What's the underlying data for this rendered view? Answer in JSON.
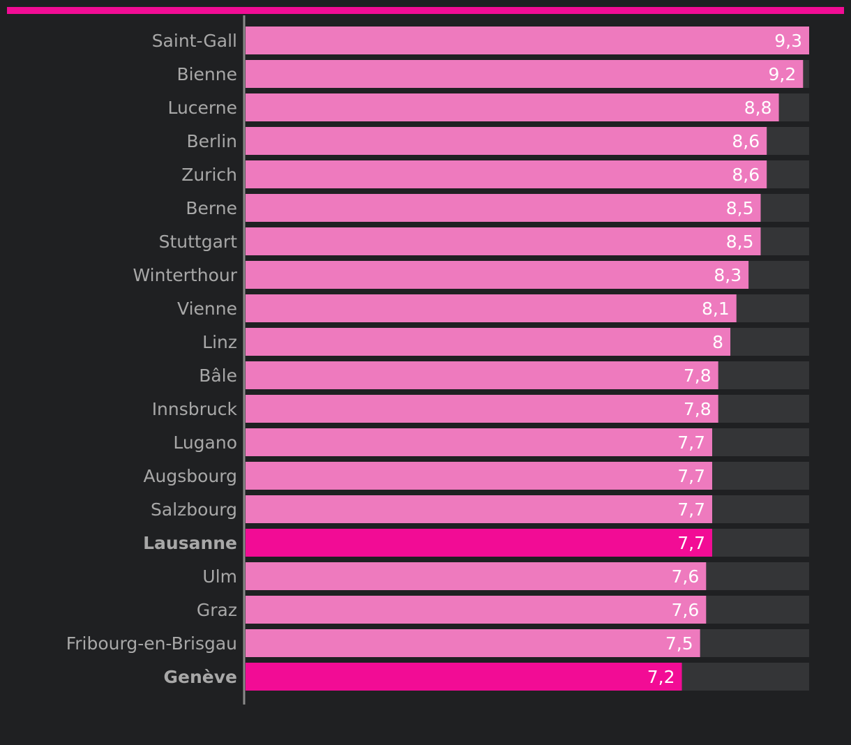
{
  "colors": {
    "background": "#1f2022",
    "accent": "#f20c95",
    "bar": "#ee7abe",
    "bar_highlight": "#f20c95",
    "track": "#343537",
    "axis": "#8a8a8a",
    "label": "#a8a8a8",
    "value_label": "#ffffff"
  },
  "chart_data": {
    "type": "bar",
    "orientation": "horizontal",
    "categories": [
      "Saint-Gall",
      "Bienne",
      "Lucerne",
      "Berlin",
      "Zurich",
      "Berne",
      "Stuttgart",
      "Winterthour",
      "Vienne",
      "Linz",
      "Bâle",
      "Innsbruck",
      "Lugano",
      "Augsbourg",
      "Salzbourg",
      "Lausanne",
      "Ulm",
      "Graz",
      "Fribourg-en-Brisgau",
      "Genève"
    ],
    "values": [
      9.3,
      9.2,
      8.8,
      8.6,
      8.6,
      8.5,
      8.5,
      8.3,
      8.1,
      8,
      7.8,
      7.8,
      7.7,
      7.7,
      7.7,
      7.7,
      7.6,
      7.6,
      7.5,
      7.2
    ],
    "value_labels": [
      "9,3",
      "9,2",
      "8,8",
      "8,6",
      "8,6",
      "8,5",
      "8,5",
      "8,3",
      "8,1",
      "8",
      "7,8",
      "7,8",
      "7,7",
      "7,7",
      "7,7",
      "7,7",
      "7,6",
      "7,6",
      "7,5",
      "7,2"
    ],
    "highlighted": [
      "Lausanne",
      "Genève"
    ],
    "xlim": [
      0,
      9.3
    ],
    "grid": false,
    "legend": "none",
    "title": "",
    "xlabel": "",
    "ylabel": ""
  }
}
